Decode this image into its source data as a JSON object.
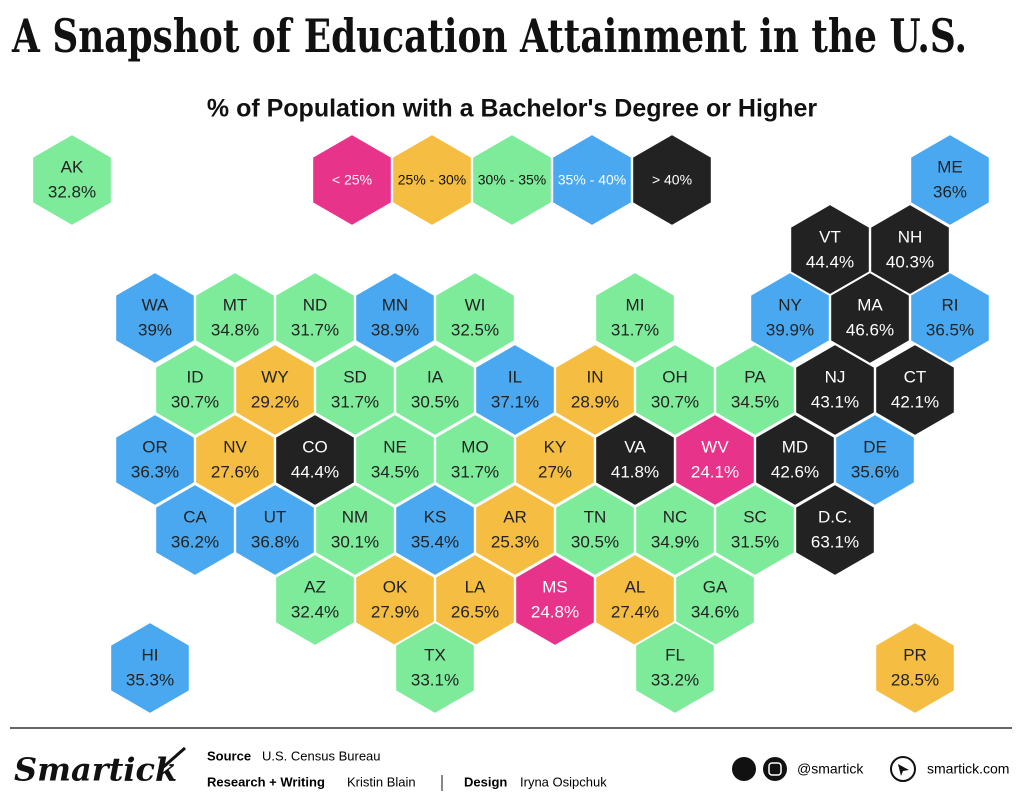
{
  "title": "A Snapshot of Education Attainment in the U.S.",
  "subtitle": "% of Population with a Bachelor's Degree or Higher",
  "legend": [
    {
      "label": "< 25%",
      "color": "#e8338a",
      "from": null,
      "to": 25
    },
    {
      "label": "25% - 30%",
      "color": "#f5bd42",
      "from": 25,
      "to": 30
    },
    {
      "label": "30% - 35%",
      "color": "#7deb9a",
      "from": 30,
      "to": 35
    },
    {
      "label": "35% - 40%",
      "color": "#4aa8f0",
      "from": 35,
      "to": 40
    },
    {
      "label": "> 40%",
      "color": "#222222",
      "from": 40,
      "to": null
    }
  ],
  "states": [
    {
      "code": "AK",
      "value": 32.8,
      "value_label": "32.8%"
    },
    {
      "code": "ME",
      "value": 36,
      "value_label": "36%"
    },
    {
      "code": "VT",
      "value": 44.4,
      "value_label": "44.4%"
    },
    {
      "code": "NH",
      "value": 40.3,
      "value_label": "40.3%"
    },
    {
      "code": "WA",
      "value": 39,
      "value_label": "39%"
    },
    {
      "code": "MT",
      "value": 34.8,
      "value_label": "34.8%"
    },
    {
      "code": "ND",
      "value": 31.7,
      "value_label": "31.7%"
    },
    {
      "code": "MN",
      "value": 38.9,
      "value_label": "38.9%"
    },
    {
      "code": "WI",
      "value": 32.5,
      "value_label": "32.5%"
    },
    {
      "code": "MI",
      "value": 31.7,
      "value_label": "31.7%"
    },
    {
      "code": "NY",
      "value": 39.9,
      "value_label": "39.9%"
    },
    {
      "code": "MA",
      "value": 46.6,
      "value_label": "46.6%"
    },
    {
      "code": "RI",
      "value": 36.5,
      "value_label": "36.5%"
    },
    {
      "code": "ID",
      "value": 30.7,
      "value_label": "30.7%"
    },
    {
      "code": "WY",
      "value": 29.2,
      "value_label": "29.2%"
    },
    {
      "code": "SD",
      "value": 31.7,
      "value_label": "31.7%"
    },
    {
      "code": "IA",
      "value": 30.5,
      "value_label": "30.5%"
    },
    {
      "code": "IL",
      "value": 37.1,
      "value_label": "37.1%"
    },
    {
      "code": "IN",
      "value": 28.9,
      "value_label": "28.9%"
    },
    {
      "code": "OH",
      "value": 30.7,
      "value_label": "30.7%"
    },
    {
      "code": "PA",
      "value": 34.5,
      "value_label": "34.5%"
    },
    {
      "code": "NJ",
      "value": 43.1,
      "value_label": "43.1%"
    },
    {
      "code": "CT",
      "value": 42.1,
      "value_label": "42.1%"
    },
    {
      "code": "OR",
      "value": 36.3,
      "value_label": "36.3%"
    },
    {
      "code": "NV",
      "value": 27.6,
      "value_label": "27.6%"
    },
    {
      "code": "CO",
      "value": 44.4,
      "value_label": "44.4%"
    },
    {
      "code": "NE",
      "value": 34.5,
      "value_label": "34.5%"
    },
    {
      "code": "MO",
      "value": 31.7,
      "value_label": "31.7%"
    },
    {
      "code": "KY",
      "value": 27,
      "value_label": "27%"
    },
    {
      "code": "VA",
      "value": 41.8,
      "value_label": "41.8%"
    },
    {
      "code": "WV",
      "value": 24.1,
      "value_label": "24.1%"
    },
    {
      "code": "MD",
      "value": 42.6,
      "value_label": "42.6%"
    },
    {
      "code": "DE",
      "value": 35.6,
      "value_label": "35.6%"
    },
    {
      "code": "CA",
      "value": 36.2,
      "value_label": "36.2%"
    },
    {
      "code": "UT",
      "value": 36.8,
      "value_label": "36.8%"
    },
    {
      "code": "NM",
      "value": 30.1,
      "value_label": "30.1%"
    },
    {
      "code": "KS",
      "value": 35.4,
      "value_label": "35.4%"
    },
    {
      "code": "AR",
      "value": 25.3,
      "value_label": "25.3%"
    },
    {
      "code": "TN",
      "value": 30.5,
      "value_label": "30.5%"
    },
    {
      "code": "NC",
      "value": 34.9,
      "value_label": "34.9%"
    },
    {
      "code": "SC",
      "value": 31.5,
      "value_label": "31.5%"
    },
    {
      "code": "D.C.",
      "value": 63.1,
      "value_label": "63.1%"
    },
    {
      "code": "AZ",
      "value": 32.4,
      "value_label": "32.4%"
    },
    {
      "code": "OK",
      "value": 27.9,
      "value_label": "27.9%"
    },
    {
      "code": "LA",
      "value": 26.5,
      "value_label": "26.5%"
    },
    {
      "code": "MS",
      "value": 24.8,
      "value_label": "24.8%"
    },
    {
      "code": "AL",
      "value": 27.4,
      "value_label": "27.4%"
    },
    {
      "code": "GA",
      "value": 34.6,
      "value_label": "34.6%"
    },
    {
      "code": "HI",
      "value": 35.3,
      "value_label": "35.3%"
    },
    {
      "code": "TX",
      "value": 33.1,
      "value_label": "33.1%"
    },
    {
      "code": "FL",
      "value": 33.2,
      "value_label": "33.2%"
    },
    {
      "code": "PR",
      "value": 28.5,
      "value_label": "28.5%"
    }
  ],
  "footer": {
    "logo": "Smartick",
    "source_label": "Source",
    "source": "U.S. Census Bureau",
    "research_label": "Research + Writing",
    "research": "Kristin Blain",
    "design_label": "Design",
    "design": "Iryna Osipchuk",
    "social": "@smartick",
    "site": "smartick.com"
  }
}
